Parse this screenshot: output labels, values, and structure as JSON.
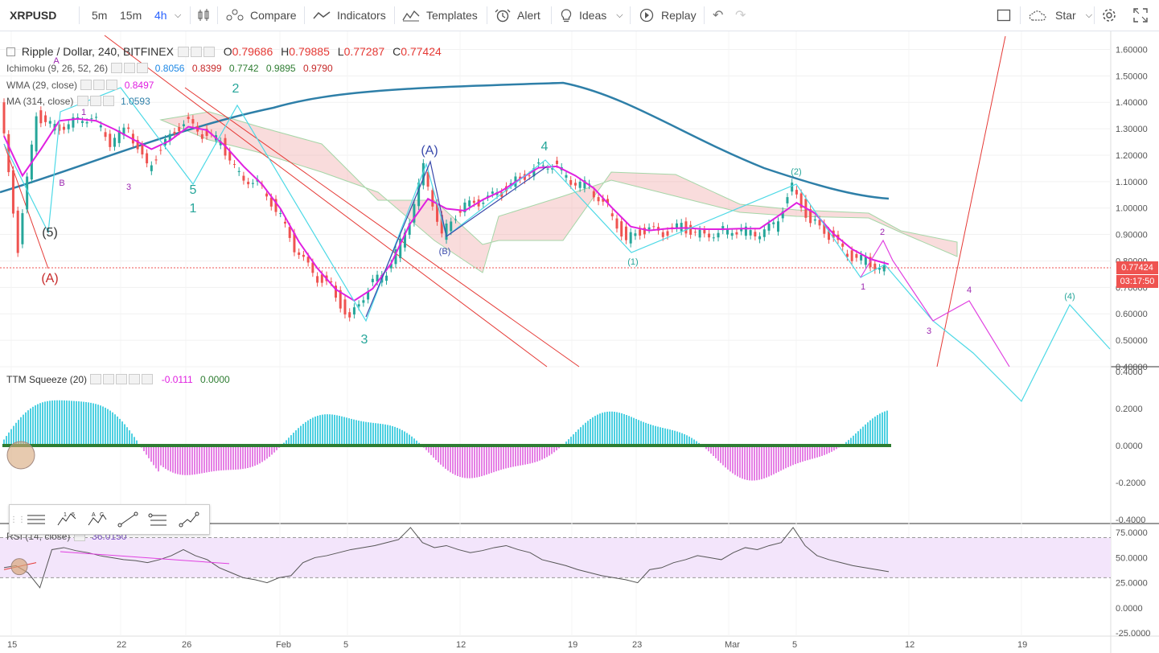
{
  "toolbar": {
    "symbol": "XRPUSD",
    "timeframes": [
      "5m",
      "15m",
      "4h"
    ],
    "active_timeframe": "4h",
    "compare": "Compare",
    "indicators": "Indicators",
    "templates": "Templates",
    "alert": "Alert",
    "ideas": "Ideas",
    "replay": "Replay",
    "star": "Star"
  },
  "legend": {
    "title": "Ripple / Dollar, 240, BITFINEX",
    "open_label": "O",
    "open": "0.79686",
    "high_label": "H",
    "high": "0.79885",
    "low_label": "L",
    "low": "0.77287",
    "close_label": "C",
    "close": "0.77424",
    "ichimoku_label": "Ichimoku (9, 26, 52, 26)",
    "ichimoku_values": [
      "0.8056",
      "0.8399",
      "0.7742",
      "0.9895",
      "0.9790"
    ],
    "wma_label": "WMA (29, close)",
    "wma_value": "0.8497",
    "ma_label": "MA (314, close)",
    "ma_value": "1.0593",
    "ttm_label": "TTM Squeeze (20)",
    "ttm_values": [
      "-0.0111",
      "0.0000"
    ],
    "rsi_label": "RSI (14, close)",
    "rsi_value": "36.0150"
  },
  "price_tags": {
    "last_price": "0.77424",
    "countdown": "03:17:50"
  },
  "colors": {
    "up": "#26a69a",
    "down": "#ef5350",
    "ma": "#2e7fa8",
    "wma": "#e020e0",
    "wave_cyan": "#4dd9e6",
    "wave_magenta": "#e040e0",
    "trend_red": "#e53935",
    "rsi_band": "#f3e5fb"
  },
  "chart_data": [
    {
      "type": "line",
      "title": "Ripple / Dollar, 240, BITFINEX",
      "x_ticks": [
        "15",
        "22",
        "26",
        "Feb",
        "5",
        "12",
        "19",
        "23",
        "Mar",
        "5",
        "12",
        "19"
      ],
      "y_ticks": [
        "1.60000",
        "1.50000",
        "1.40000",
        "1.30000",
        "1.20000",
        "1.10000",
        "1.00000",
        "0.90000",
        "0.80000",
        "0.70000",
        "0.60000",
        "0.50000",
        "0.40000"
      ],
      "ylim": [
        0.4,
        1.65
      ],
      "series": [
        {
          "name": "Ripple / Dollar",
          "values": [
            1.4,
            0.85,
            1.35,
            1.3,
            1.33,
            1.35,
            1.25,
            1.3,
            1.15,
            1.25,
            1.33,
            1.28,
            1.25,
            1.12,
            1.1,
            1.0,
            0.85,
            0.75,
            0.7,
            0.58,
            0.7,
            0.76,
            0.9,
            1.15,
            0.9,
            1.0,
            1.02,
            1.05,
            1.1,
            1.15,
            1.17,
            1.1,
            1.08,
            1.0,
            0.88,
            0.92,
            0.9,
            0.93,
            0.9,
            0.91,
            0.92,
            0.9,
            0.93,
            1.08,
            0.95,
            0.9,
            0.82,
            0.8,
            0.77
          ]
        }
      ],
      "wave_labels": [
        "(5)",
        "(A)",
        "1",
        "2",
        "3",
        "4",
        "5",
        "(A)",
        "(B)",
        "(1)",
        "(2)",
        "1",
        "2",
        "3",
        "4",
        "(4)",
        "A",
        "B",
        "1",
        "3"
      ]
    },
    {
      "type": "bar",
      "title": "TTM Squeeze (20)",
      "y_ticks": [
        "0.4000",
        "0.2000",
        "0.0000",
        "-0.2000",
        "-0.4000"
      ],
      "ylim": [
        -0.4,
        0.4
      ]
    },
    {
      "type": "line",
      "title": "RSI (14, close)",
      "y_ticks": [
        "75.0000",
        "50.0000",
        "25.0000",
        "0.0000",
        "-25.0000"
      ],
      "ylim": [
        -25,
        80
      ],
      "series": [
        {
          "values": [
            40,
            42,
            35,
            20,
            58,
            60,
            57,
            55,
            52,
            50,
            48,
            47,
            45,
            48,
            52,
            58,
            52,
            48,
            40,
            35,
            30,
            28,
            25,
            30,
            32,
            45,
            50,
            52,
            55,
            58,
            60,
            62,
            65,
            68,
            80,
            65,
            60,
            62,
            58,
            55,
            57,
            60,
            62,
            58,
            55,
            48,
            45,
            42,
            38,
            35,
            32,
            30,
            28,
            25,
            38,
            40,
            45,
            48,
            52,
            50,
            48,
            55,
            60,
            58,
            62,
            65,
            80,
            62,
            52,
            48,
            45,
            42,
            40,
            38,
            36
          ]
        }
      ]
    }
  ]
}
